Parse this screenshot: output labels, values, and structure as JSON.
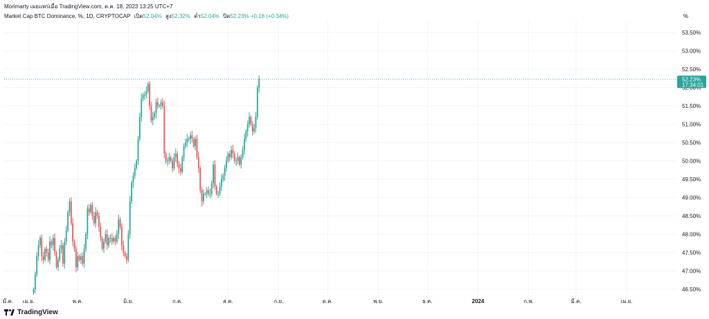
{
  "header": {
    "publish_line": "Morimarty เผยแพร่เมื่อ TradingView.com, ต.ค. 18, 2023 13:25 UTC+7"
  },
  "symbol": {
    "title": "Market Cap BTC Dominance, %, 1D, CRYPTOCAP",
    "open_label": "เปิด",
    "open_value": "52.04%",
    "high_label": "สูง",
    "high_value": "52.32%",
    "low_label": "ต่ำ",
    "low_value": "52.04%",
    "close_label": "ปิด",
    "close_value": "52.23%",
    "change": "+0.18 (+0.34%)"
  },
  "price_scale": {
    "unit": "%",
    "current_value": "52.23%",
    "countdown": "17:34:01"
  },
  "footer": {
    "brand": "TradingView"
  },
  "colors": {
    "up": "#26a69a",
    "down": "#ef5350",
    "grid": "#f0f3fa",
    "axis_text": "#131722",
    "price_line": "#26a69a"
  },
  "chart_data": {
    "type": "candlestick",
    "title": "Market Cap BTC Dominance, %, 1D, CRYPTOCAP",
    "ylim": [
      46.4,
      53.9
    ],
    "y_ticks": [
      "53.50%",
      "53.00%",
      "52.50%",
      "52.00%",
      "51.50%",
      "51.00%",
      "50.50%",
      "50.00%",
      "49.50%",
      "49.00%",
      "48.50%",
      "48.00%",
      "47.50%",
      "47.00%",
      "46.50%"
    ],
    "y_tick_values": [
      53.5,
      53.0,
      52.5,
      52.0,
      51.5,
      51.0,
      50.5,
      50.0,
      49.5,
      49.0,
      48.5,
      48.0,
      47.5,
      47.0,
      46.5
    ],
    "x_tick_labels": [
      "เม.ย.",
      "พ.ค.",
      "มิ.ย.",
      "ก.ค.",
      "ส.ค.",
      "ก.ย.",
      "ต.ค.",
      "พ.ย.",
      "ธ.ค.",
      "2024",
      "ก.พ.",
      "มี.ค.",
      "เม.ย."
    ],
    "x_tick_days": [
      6,
      36,
      67,
      97,
      128,
      159,
      189,
      220,
      250,
      281,
      312,
      341,
      372
    ],
    "first_x_label": "มี.ค.",
    "last_close": 52.23,
    "closes": [
      46.5,
      46.9,
      47.4,
      47.7,
      47.9,
      47.4,
      47.3,
      47.6,
      47.5,
      47.3,
      47.8,
      47.7,
      47.9,
      47.5,
      47.1,
      47.3,
      47.6,
      47.7,
      47.2,
      47.8,
      48.1,
      48.6,
      48.9,
      48.3,
      47.8,
      47.6,
      47.1,
      47.4,
      47.3,
      47.4,
      47.2,
      47.6,
      48.0,
      48.7,
      48.6,
      48.8,
      48.5,
      48.3,
      48.6,
      48.5,
      48.2,
      47.9,
      47.6,
      47.8,
      48.0,
      47.7,
      47.9,
      47.9,
      47.8,
      47.9,
      47.8,
      48.0,
      48.4,
      48.2,
      47.7,
      47.5,
      47.4,
      47.3,
      48.0,
      48.9,
      49.4,
      49.6,
      49.8,
      50.0,
      50.6,
      51.2,
      51.7,
      51.8,
      51.8,
      51.9,
      52.1,
      51.5,
      51.1,
      51.2,
      51.3,
      51.6,
      51.5,
      51.5,
      51.6,
      51.5,
      50.2,
      50.0,
      50.0,
      50.1,
      50.0,
      49.8,
      50.1,
      50.2,
      49.9,
      49.8,
      49.7,
      50.1,
      50.4,
      50.5,
      50.6,
      50.6,
      50.7,
      50.6,
      50.4,
      50.6,
      50.1,
      49.8,
      49.2,
      48.9,
      49.1,
      49.1,
      49.2,
      49.1,
      49.1,
      49.4,
      49.9,
      49.3,
      49.1,
      49.1,
      49.3,
      49.5,
      49.6,
      49.8,
      50.0,
      50.2,
      50.1,
      50.3,
      50.2,
      50.0,
      50.0,
      50.1,
      49.9,
      50.1,
      50.3,
      50.6,
      50.8,
      51.0,
      51.2,
      51.0,
      50.8,
      50.9,
      51.2,
      52.0,
      52.23
    ]
  }
}
